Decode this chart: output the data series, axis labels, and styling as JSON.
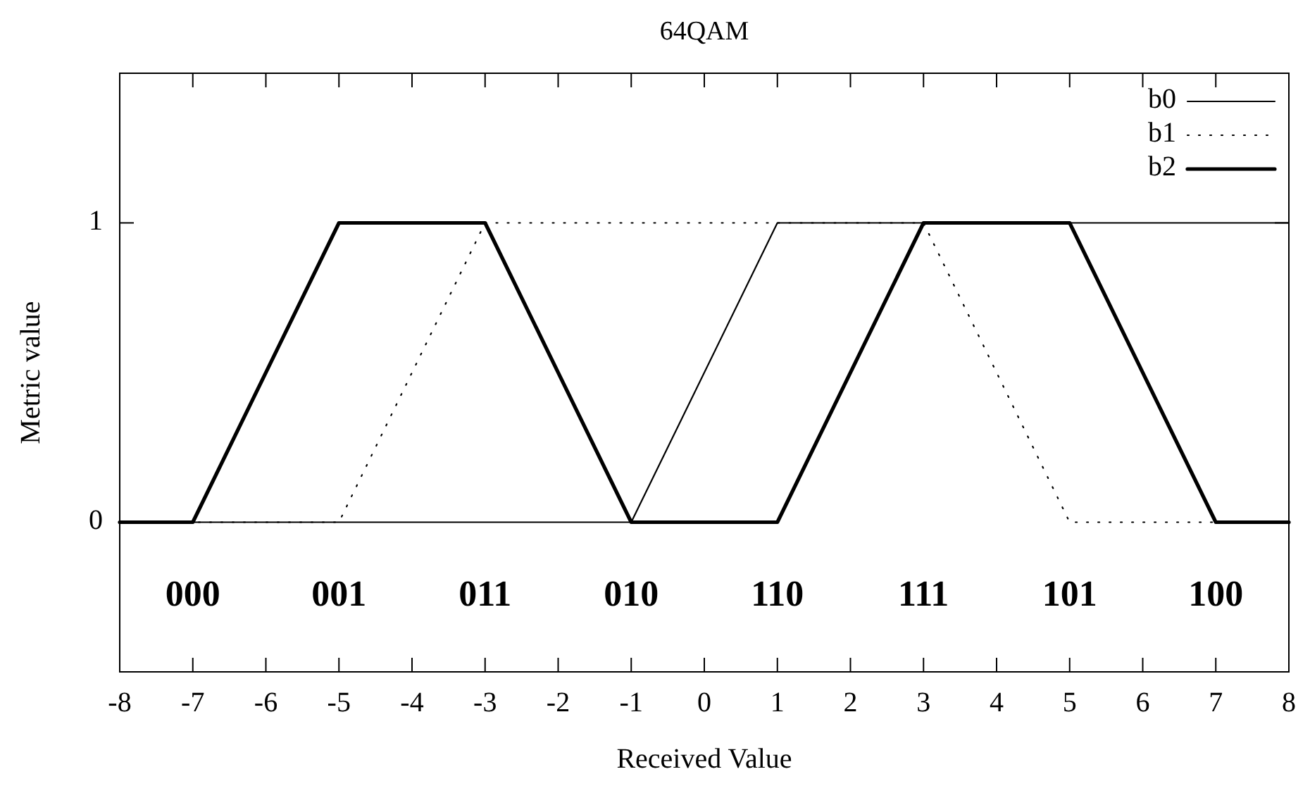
{
  "chart_data": {
    "type": "line",
    "title": "64QAM",
    "xlabel": "Received Value",
    "ylabel": "Metric value",
    "xlim": [
      -8,
      8
    ],
    "xticks": [
      -8,
      -7,
      -6,
      -5,
      -4,
      -3,
      -2,
      -1,
      0,
      1,
      2,
      3,
      4,
      5,
      6,
      7,
      8
    ],
    "ylim": [
      -0.5,
      1.5
    ],
    "yticks": [
      0,
      1
    ],
    "grid": false,
    "legend": "top right",
    "series": [
      {
        "name": "b0",
        "color": "#000000",
        "line_style": "solid",
        "x": [
          -8,
          -1,
          1,
          8
        ],
        "values": [
          0,
          0,
          1,
          1
        ]
      },
      {
        "name": "b1",
        "color": "#000000",
        "line_style": "dotted",
        "x": [
          -8,
          -5,
          -3,
          3,
          5,
          8
        ],
        "values": [
          0,
          0,
          1,
          1,
          0,
          0
        ]
      },
      {
        "name": "b2",
        "color": "#000000",
        "line_style": "solid",
        "x": [
          -8,
          -7,
          -5,
          -3,
          -1,
          1,
          3,
          5,
          7,
          8
        ],
        "values": [
          0,
          0,
          1,
          1,
          0,
          0,
          1,
          1,
          0,
          0
        ]
      }
    ],
    "annotations": [
      "000",
      "001",
      "011",
      "010",
      "110",
      "111",
      "101",
      "100"
    ]
  }
}
